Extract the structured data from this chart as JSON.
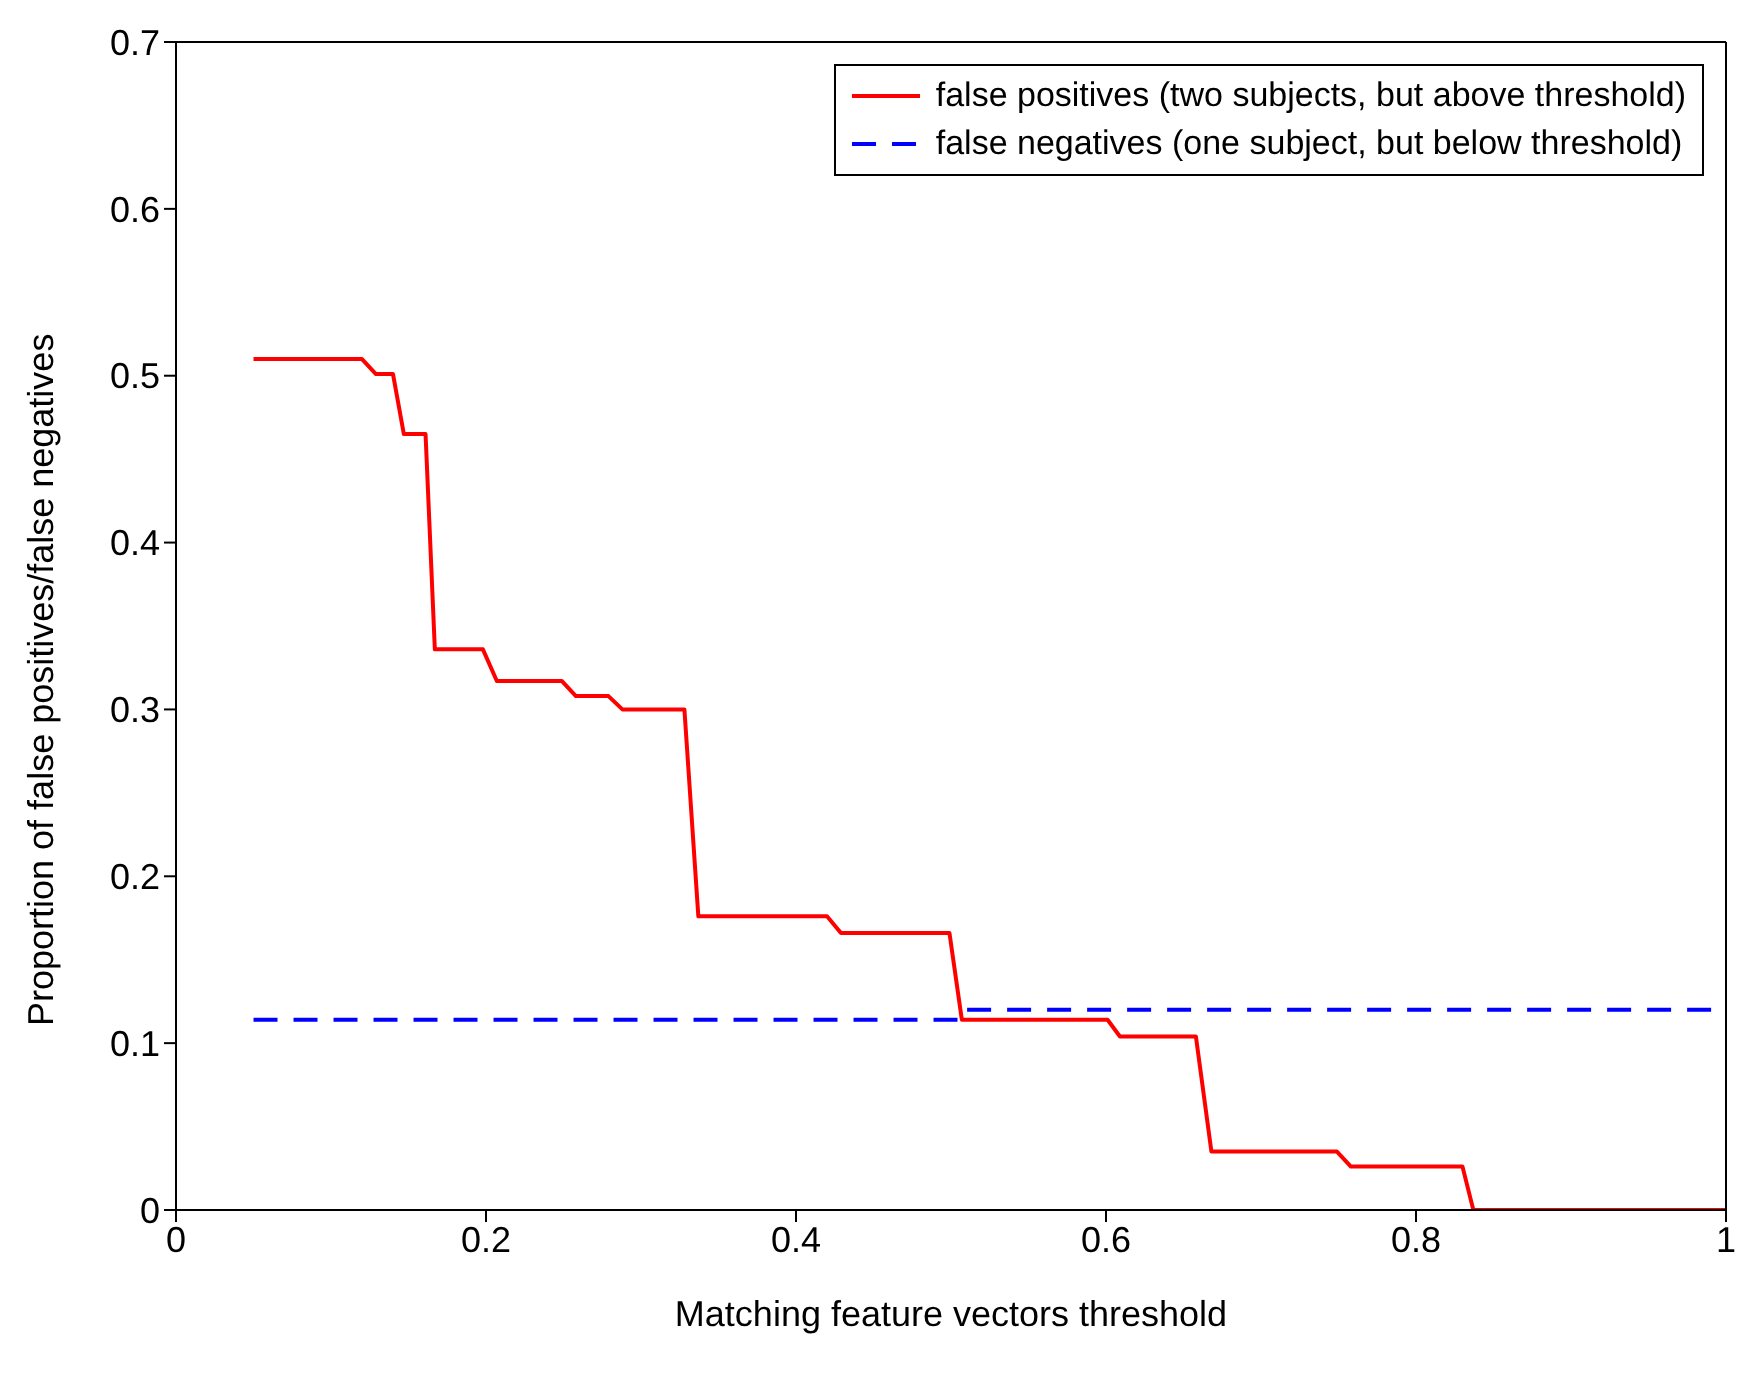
{
  "chart_data": {
    "type": "line",
    "xlabel": "Matching feature vectors threshold",
    "ylabel": "Proportion of false positives/false negatives",
    "series": [
      {
        "name": "false positives (two subjects, but above threshold)",
        "color": "#ff0000",
        "line_style": "solid",
        "x": [
          0.05,
          0.12,
          0.129,
          0.14,
          0.147,
          0.161,
          0.167,
          0.198,
          0.207,
          0.249,
          0.258,
          0.279,
          0.288,
          0.328,
          0.337,
          0.42,
          0.429,
          0.499,
          0.507,
          0.601,
          0.609,
          0.658,
          0.668,
          0.749,
          0.758,
          0.83,
          0.837,
          1
        ],
        "values": [
          0.51,
          0.51,
          0.501,
          0.501,
          0.465,
          0.465,
          0.336,
          0.336,
          0.317,
          0.317,
          0.308,
          0.308,
          0.3,
          0.3,
          0.176,
          0.176,
          0.166,
          0.166,
          0.114,
          0.114,
          0.104,
          0.104,
          0.035,
          0.035,
          0.026,
          0.026,
          0,
          0
        ]
      },
      {
        "name": "false negatives (one subject, but below threshold)",
        "color": "#0000ff",
        "line_style": "dashed",
        "x": [
          0.05,
          0.507,
          0.51,
          1
        ],
        "values": [
          0.114,
          0.114,
          0.12,
          0.12
        ]
      }
    ],
    "xlim": [
      0,
      1
    ],
    "xticks": [
      0,
      0.2,
      0.4,
      0.6,
      0.8,
      1
    ],
    "ylim": [
      0,
      0.7
    ],
    "yticks": [
      0,
      0.1,
      0.2,
      0.3,
      0.4,
      0.5,
      0.6,
      0.7
    ],
    "legend": "top right",
    "marker": "none"
  }
}
